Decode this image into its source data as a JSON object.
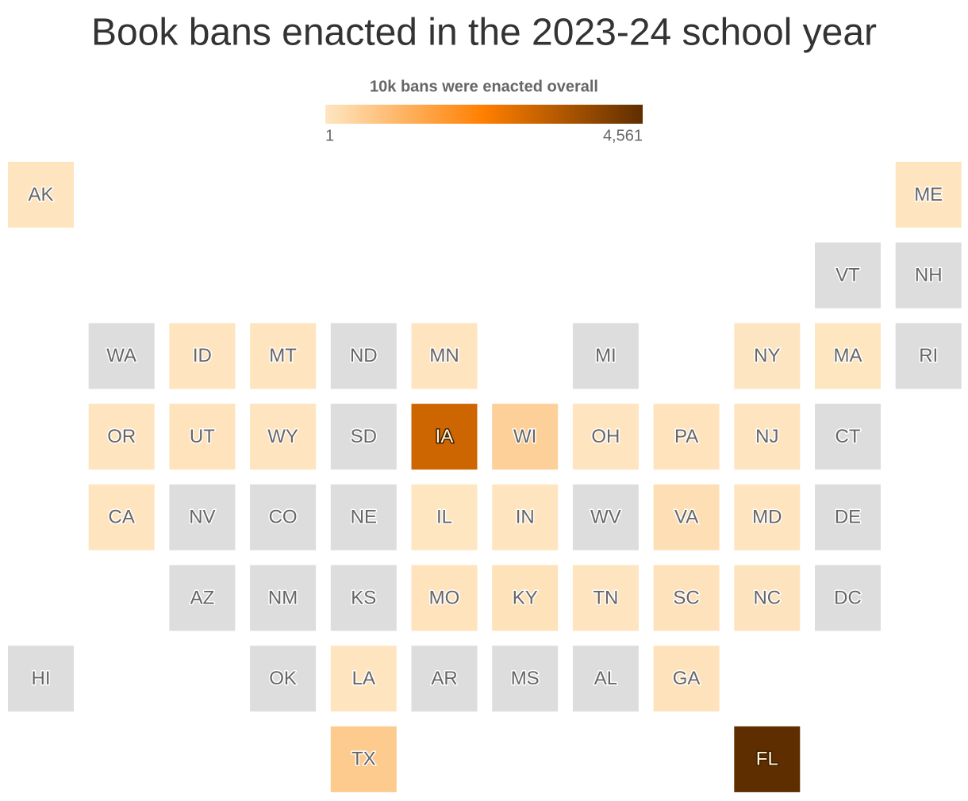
{
  "chart_data": {
    "type": "tilemap",
    "title": "Book bans enacted in the 2023-24 school year",
    "legend": {
      "title": "10k bans were enacted overall",
      "ticks": [
        1,
        {
          "value": 4561,
          "label": "4,561"
        }
      ]
    },
    "clim": [
      1,
      4561
    ],
    "colors": [
      "#fee6c2",
      "#ff7f00",
      "#5f2e00"
    ],
    "missing_color": "#dddddd",
    "categories": [
      "AK",
      "ME",
      "VT",
      "NH",
      "WA",
      "ID",
      "MT",
      "ND",
      "MN",
      "MI",
      "NY",
      "MA",
      "RI",
      "OR",
      "UT",
      "WY",
      "SD",
      "IA",
      "WI",
      "OH",
      "PA",
      "NJ",
      "CT",
      "CA",
      "NV",
      "CO",
      "NE",
      "IL",
      "IN",
      "WV",
      "VA",
      "MD",
      "DE",
      "AZ",
      "NM",
      "KS",
      "MO",
      "KY",
      "TN",
      "SC",
      "NC",
      "DC",
      "HI",
      "OK",
      "LA",
      "AR",
      "MS",
      "AL",
      "GA",
      "TX",
      "FL"
    ],
    "values": [
      30,
      30,
      null,
      null,
      null,
      40,
      20,
      null,
      20,
      null,
      15,
      10,
      null,
      30,
      60,
      40,
      null,
      3000,
      480,
      40,
      60,
      20,
      null,
      30,
      null,
      null,
      null,
      10,
      20,
      null,
      150,
      40,
      null,
      null,
      null,
      null,
      60,
      90,
      40,
      80,
      50,
      null,
      null,
      null,
      30,
      null,
      null,
      null,
      80,
      600,
      4561
    ]
  }
}
